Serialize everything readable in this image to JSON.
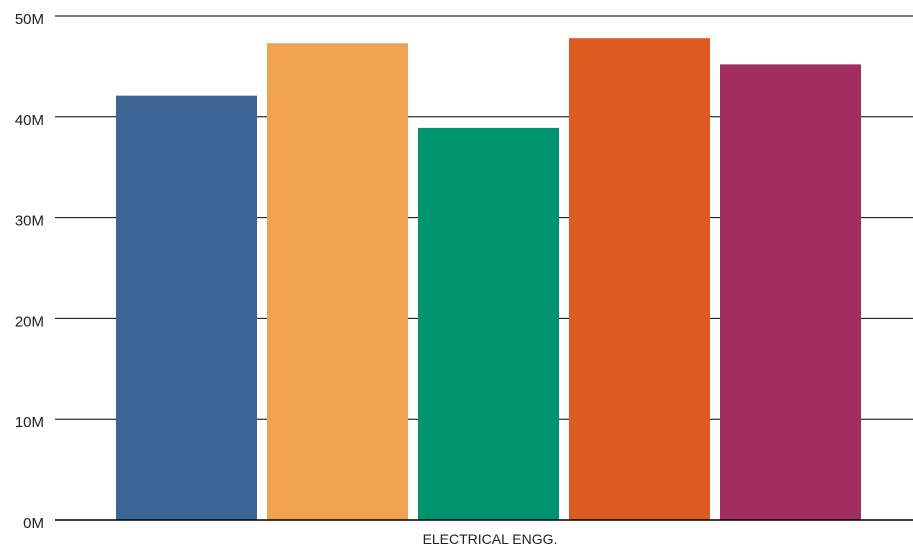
{
  "chart_data": {
    "type": "bar",
    "categories": [
      "ELECTRICAL ENGG."
    ],
    "series": [
      {
        "values": [
          42.1
        ],
        "color": "#3a6595"
      },
      {
        "values": [
          47.3
        ],
        "color": "#efa351"
      },
      {
        "values": [
          38.9
        ],
        "color": "#009370"
      },
      {
        "values": [
          47.8
        ],
        "color": "#dd5a20"
      },
      {
        "values": [
          45.2
        ],
        "color": "#a12c60"
      }
    ],
    "ylim": [
      0,
      50
    ],
    "yticks": [
      0,
      10,
      20,
      30,
      40,
      50
    ],
    "ytick_labels": [
      "0M",
      "10M",
      "20M",
      "30M",
      "40M",
      "50M"
    ],
    "grid": true,
    "legend": "none"
  }
}
